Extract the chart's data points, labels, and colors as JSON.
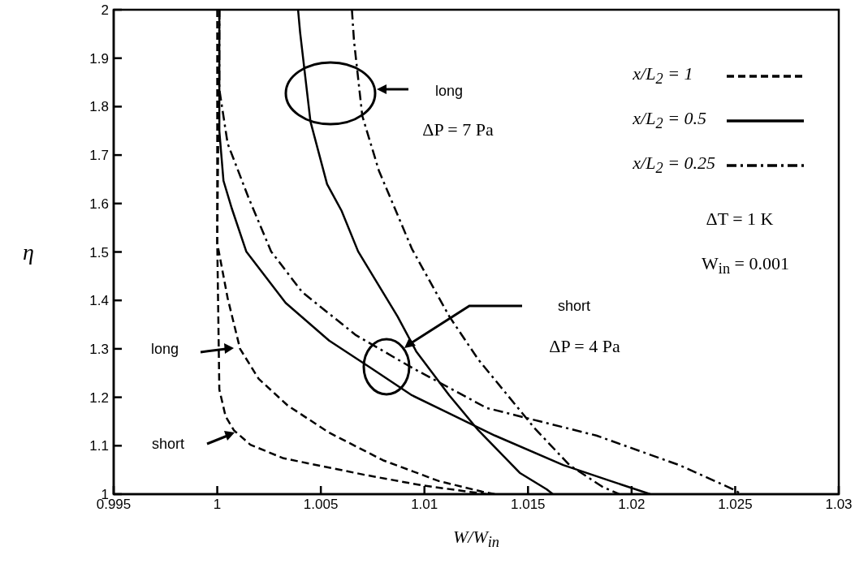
{
  "chart_data": {
    "type": "line",
    "xlabel": "W/W$_{in}$",
    "ylabel": "η",
    "xlim": [
      0.995,
      1.03
    ],
    "xticks": [
      0.995,
      1,
      1.005,
      1.01,
      1.015,
      1.02,
      1.025,
      1.03
    ],
    "ylim": [
      1,
      2
    ],
    "yticks": [
      1,
      1.1,
      1.2,
      1.3,
      1.4,
      1.5,
      1.6,
      1.7,
      1.8,
      1.9,
      2
    ],
    "legend": "top right",
    "marker": "none",
    "series": [
      {
        "name": "x/L$_{2}$ = 1",
        "color": "#000000",
        "line_style": "dashed",
        "x": [
          1.0001,
          1.0,
          1.0001,
          1.0004,
          1.0008,
          1.0016,
          1.0032,
          1.0071,
          1.0099,
          1.013
        ],
        "values": [
          2.0,
          1.518,
          1.216,
          1.161,
          1.132,
          1.102,
          1.074,
          1.04,
          1.018,
          1.0
        ]
      },
      {
        "color": "#000000",
        "line_style": "dashed",
        "x": [
          1.0,
          1.0,
          1.0005,
          1.0011,
          1.002,
          1.0034,
          1.0054,
          1.008,
          1.0107,
          1.0128,
          1.0134
        ],
        "values": [
          2.0,
          1.518,
          1.405,
          1.3,
          1.238,
          1.183,
          1.127,
          1.07,
          1.027,
          1.005,
          1.0
        ]
      },
      {
        "name": "x/L$_{2}$ = 0.5",
        "color": "#000000",
        "line_style": "solid",
        "x": [
          1.0001,
          1.0001,
          1.0003,
          1.0007,
          1.0014,
          1.0033,
          1.0054,
          1.0074,
          1.0094,
          1.0134,
          1.0167,
          1.019,
          1.0209
        ],
        "values": [
          2.0,
          1.75,
          1.647,
          1.59,
          1.501,
          1.395,
          1.317,
          1.261,
          1.204,
          1.121,
          1.06,
          1.027,
          1.0
        ]
      },
      {
        "color": "#000000",
        "line_style": "solid",
        "x": [
          1.0039,
          1.004,
          1.0045,
          1.0053,
          1.006,
          1.0068,
          1.0087,
          1.0096,
          1.0112,
          1.0126,
          1.0146,
          1.0159,
          1.0162
        ],
        "values": [
          2.0,
          1.953,
          1.769,
          1.64,
          1.585,
          1.501,
          1.367,
          1.295,
          1.204,
          1.132,
          1.044,
          1.01,
          1.0
        ]
      },
      {
        "name": "x/L$_{2}$ = 0.25",
        "color": "#000000",
        "line_style": "dashdot",
        "x": [
          1.0001,
          1.0001,
          1.0005,
          1.0015,
          1.0026,
          1.0041,
          1.0067,
          1.0094,
          1.013,
          1.0183,
          1.0223,
          1.0249,
          1.0253
        ],
        "values": [
          2.0,
          1.836,
          1.724,
          1.613,
          1.501,
          1.417,
          1.328,
          1.261,
          1.178,
          1.121,
          1.06,
          1.01,
          1.0
        ]
      },
      {
        "color": "#000000",
        "line_style": "dashdot",
        "x": [
          1.0065,
          1.0066,
          1.007,
          1.0078,
          1.0094,
          1.0112,
          1.0126,
          1.0153,
          1.017,
          1.0186,
          1.0194
        ],
        "values": [
          2.0,
          1.936,
          1.781,
          1.668,
          1.506,
          1.367,
          1.278,
          1.137,
          1.06,
          1.015,
          1.0
        ]
      }
    ],
    "annotations": [
      "long",
      "ΔP = 7 Pa",
      "short",
      "ΔP = 4 Pa",
      "long",
      "short",
      "ΔT = 1 K",
      "W$_{in}$ = 0.001"
    ]
  }
}
